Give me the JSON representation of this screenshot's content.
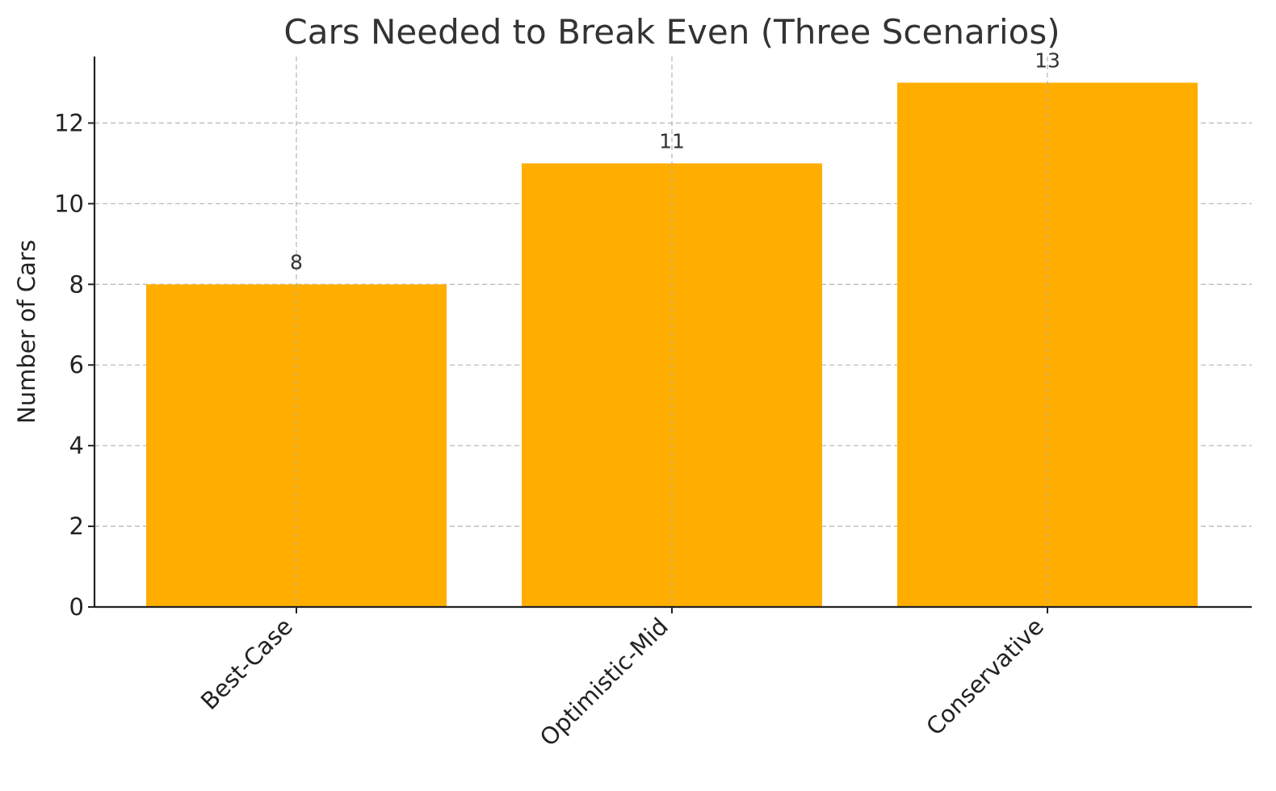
{
  "chart_data": {
    "type": "bar",
    "title": "Cars Needed to Break Even (Three Scenarios)",
    "xlabel": "",
    "ylabel": "Number of Cars",
    "categories": [
      "Best-Case",
      "Optimistic-Mid",
      "Conservative"
    ],
    "values": [
      8,
      11,
      13
    ],
    "value_labels": [
      "8",
      "11",
      "13"
    ],
    "ylim": [
      0,
      13.65
    ],
    "yticks": [
      0,
      2,
      4,
      6,
      8,
      10,
      12
    ],
    "ytick_labels": [
      "0",
      "2",
      "4",
      "6",
      "8",
      "10",
      "12"
    ],
    "bar_color": "#FFAE00",
    "grid": true,
    "legend": "none"
  }
}
